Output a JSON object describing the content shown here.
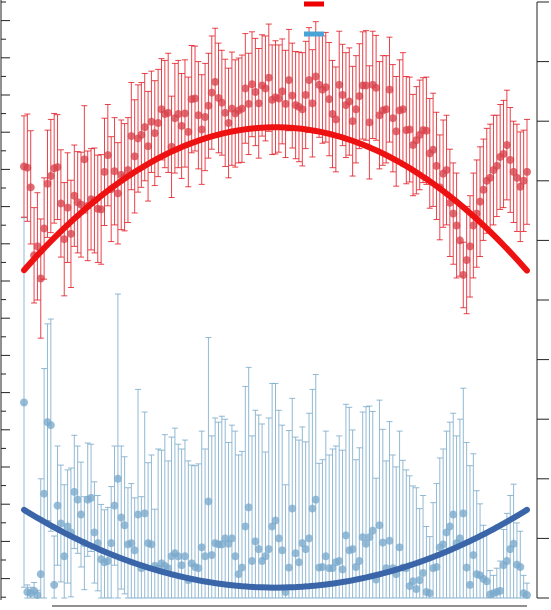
{
  "chart_data": {
    "type": "scatter",
    "title": "",
    "xlabel": "",
    "ylabel": "",
    "xlim": [
      0,
      150
    ],
    "ylim_left": [
      0,
      1000
    ],
    "ylim_right": [
      0,
      10
    ],
    "grid": false,
    "legend_position": "top-center",
    "series": [
      {
        "key": "red",
        "color": "#e4212a",
        "marker_color": "#d7434d",
        "fit_color": "#ee1111",
        "fit_coeffs": [
          -0.0427,
          6.4,
          550
        ],
        "x": [
          0,
          1,
          2,
          3,
          4,
          5,
          6,
          7,
          8,
          9,
          10,
          11,
          12,
          13,
          14,
          15,
          16,
          17,
          18,
          19,
          20,
          21,
          22,
          23,
          24,
          25,
          26,
          27,
          28,
          29,
          30,
          31,
          32,
          33,
          34,
          35,
          36,
          37,
          38,
          39,
          40,
          41,
          42,
          43,
          44,
          45,
          46,
          47,
          48,
          49,
          50,
          51,
          52,
          53,
          54,
          55,
          56,
          57,
          58,
          59,
          60,
          61,
          62,
          63,
          64,
          65,
          66,
          67,
          68,
          69,
          70,
          71,
          72,
          73,
          74,
          75,
          76,
          77,
          78,
          79,
          80,
          81,
          82,
          83,
          84,
          85,
          86,
          87,
          88,
          89,
          90,
          91,
          92,
          93,
          94,
          95,
          96,
          97,
          98,
          99,
          100,
          101,
          102,
          103,
          104,
          105,
          106,
          107,
          108,
          109,
          110,
          111,
          112,
          113,
          114,
          115,
          116,
          117,
          118,
          119,
          120,
          121,
          122,
          123,
          124,
          125,
          126,
          127,
          128,
          129,
          130,
          131,
          132,
          133,
          134,
          135,
          136,
          137,
          138,
          139,
          140,
          141,
          142,
          143,
          144,
          145,
          146,
          147,
          148,
          149,
          150
        ],
        "y": [
          724,
          722,
          689,
          575,
          590,
          536,
          620,
          695,
          708,
          721,
          723,
          662,
          602,
          655,
          611,
          675,
          664,
          660,
          736,
          658,
          669,
          667,
          653,
          652,
          715,
          743,
          686,
          716,
          679,
          710,
          706,
          718,
          775,
          741,
          771,
          777,
          790,
          758,
          799,
          780,
          797,
          820,
          812,
          814,
          757,
          805,
          812,
          792,
          813,
          782,
          837,
          838,
          810,
          786,
          807,
          826,
          848,
          866,
          839,
          831,
          814,
          797,
          821,
          813,
          818,
          821,
          855,
          829,
          862,
          849,
          830,
          860,
          855,
          873,
          836,
          840,
          838,
          850,
          829,
          869,
          843,
          827,
          824,
          820,
          844,
          869,
          830,
          875,
          861,
          853,
          857,
          837,
          812,
          803,
          861,
          844,
          827,
          833,
          800,
          820,
          842,
          860,
          860,
          798,
          861,
          856,
          810,
          818,
          820,
          853,
          805,
          783,
          818,
          820,
          785,
          786,
          760,
          768,
          777,
          785,
          784,
          746,
          752,
          725,
          689,
          712,
          718,
          663,
          645,
          625,
          600,
          542,
          567,
          590,
          625,
          645,
          665,
          685,
          700,
          705,
          718,
          725,
          740,
          745,
          760,
          735,
          715,
          705,
          690,
          700,
          715
        ],
        "err": [
          85,
          90,
          95,
          80,
          90,
          100,
          85,
          90,
          95,
          92,
          88,
          90,
          95,
          92,
          90,
          85,
          85,
          88,
          90,
          92,
          85,
          88,
          90,
          92,
          90,
          85,
          88,
          90,
          85,
          92,
          90,
          88,
          90,
          95,
          90,
          88,
          90,
          92,
          85,
          88,
          90,
          85,
          90,
          100,
          85,
          92,
          90,
          88,
          90,
          92,
          90,
          88,
          90,
          92,
          90,
          88,
          95,
          90,
          92,
          88,
          90,
          92,
          95,
          90,
          88,
          90,
          92,
          85,
          88,
          90,
          92,
          85,
          88,
          90,
          92,
          95,
          90,
          88,
          90,
          85,
          88,
          90,
          92,
          95,
          90,
          88,
          90,
          92,
          88,
          90,
          92,
          95,
          90,
          88,
          90,
          85,
          88,
          90,
          92,
          90,
          88,
          90,
          92,
          95,
          90,
          88,
          90,
          92,
          90,
          88,
          90,
          92,
          85,
          95,
          90,
          88,
          85,
          90,
          92,
          88,
          90,
          92,
          95,
          90,
          88,
          90,
          92,
          90,
          85,
          88,
          60,
          55,
          90,
          85,
          88,
          90,
          92,
          85,
          88,
          90,
          92,
          85,
          88,
          90,
          92,
          88,
          85,
          90,
          92,
          85,
          88
        ]
      },
      {
        "key": "blue",
        "color": "#7fadcb",
        "marker_color": "#7aa9cc",
        "fit_color": "#3a65a8",
        "fit_coeffs": [
          0.0232,
          -3.48,
          148
        ],
        "x": [
          0,
          1,
          2,
          3,
          4,
          5,
          6,
          7,
          8,
          9,
          10,
          11,
          12,
          13,
          14,
          15,
          16,
          17,
          18,
          19,
          20,
          21,
          22,
          23,
          24,
          25,
          26,
          27,
          28,
          29,
          30,
          31,
          32,
          33,
          34,
          35,
          36,
          37,
          38,
          39,
          40,
          41,
          42,
          43,
          44,
          45,
          46,
          47,
          48,
          49,
          50,
          51,
          52,
          53,
          54,
          55,
          56,
          57,
          58,
          59,
          60,
          61,
          62,
          63,
          64,
          65,
          66,
          67,
          68,
          69,
          70,
          71,
          72,
          73,
          74,
          75,
          76,
          77,
          78,
          79,
          80,
          81,
          82,
          83,
          84,
          85,
          86,
          87,
          88,
          89,
          90,
          91,
          92,
          93,
          94,
          95,
          96,
          97,
          98,
          99,
          100,
          101,
          102,
          103,
          104,
          105,
          106,
          107,
          108,
          109,
          110,
          111,
          112,
          113,
          114,
          115,
          116,
          117,
          118,
          119,
          120,
          121,
          122,
          123,
          124,
          125,
          126,
          127,
          128,
          129,
          130,
          131,
          132,
          133,
          134,
          135,
          136,
          137,
          138,
          139,
          140,
          141,
          142,
          143,
          144,
          145,
          146,
          147,
          148,
          149,
          150
        ],
        "y": [
          328,
          10,
          8,
          12,
          5,
          40,
          175,
          295,
          290,
          22,
          155,
          125,
          70,
          120,
          110,
          178,
          165,
          140,
          92,
          165,
          168,
          110,
          92,
          65,
          60,
          62,
          92,
          155,
          200,
          135,
          122,
          90,
          92,
          80,
          140,
          50,
          142,
          92,
          90,
          54,
          50,
          58,
          54,
          50,
          70,
          75,
          70,
          55,
          70,
          30,
          58,
          52,
          50,
          85,
          70,
          162,
          72,
          92,
          90,
          90,
          100,
          91,
          100,
          70,
          40,
          51,
          120,
          152,
          62,
          95,
          82,
          62,
          70,
          82,
          120,
          130,
          100,
          80,
          10,
          51,
          150,
          75,
          60,
          92,
          82,
          100,
          150,
          165,
          51,
          52,
          70,
          50,
          50,
          60,
          62,
          48,
          105,
          80,
          82,
          52,
          62,
          102,
          91,
          102,
          113,
          31,
          122,
          93,
          50,
          96,
          50,
          40,
          85,
          51,
          50,
          20,
          28,
          15,
          30,
          42,
          10,
          8,
          50,
          52,
          85,
          90,
          110,
          120,
          140,
          92,
          100,
          142,
          51,
          22,
          72,
          40,
          38,
          32,
          28,
          6,
          8,
          10,
          12,
          55,
          62,
          82,
          91,
          56,
          52,
          8,
          5
        ],
        "err": [
          310,
          12,
          10,
          14,
          8,
          160,
          210,
          165,
          178,
          82,
          100,
          98,
          120,
          95,
          108,
          95,
          90,
          88,
          78,
          95,
          90,
          85,
          80,
          92,
          88,
          90,
          95,
          100,
          310,
          120,
          115,
          95,
          100,
          88,
          210,
          120,
          170,
          135,
          150,
          95,
          200,
          190,
          220,
          180,
          200,
          210,
          188,
          195,
          195,
          200,
          165,
          170,
          175,
          195,
          180,
          275,
          200,
          210,
          205,
          215,
          200,
          170,
          190,
          210,
          200,
          195,
          235,
          235,
          210,
          220,
          225,
          230,
          175,
          220,
          240,
          230,
          215,
          210,
          180,
          230,
          185,
          195,
          205,
          195,
          180,
          210,
          200,
          210,
          175,
          180,
          210,
          190,
          200,
          195,
          210,
          200,
          220,
          240,
          200,
          180,
          190,
          210,
          230,
          220,
          200,
          170,
          210,
          190,
          180,
          200,
          190,
          180,
          195,
          180,
          165,
          185,
          160,
          170,
          120,
          130,
          110,
          95,
          110,
          140,
          150,
          160,
          170,
          175,
          170,
          180,
          200,
          210,
          210,
          200,
          170,
          140,
          120,
          90,
          80,
          40,
          30,
          40,
          50,
          60,
          80,
          90,
          100,
          70,
          60,
          30,
          20
        ]
      }
    ]
  },
  "legend": {
    "items": [
      {
        "key": "red",
        "color": "#ee0000",
        "label": ""
      },
      {
        "key": "blue",
        "color": "#4aa3d6",
        "label": ""
      }
    ]
  }
}
